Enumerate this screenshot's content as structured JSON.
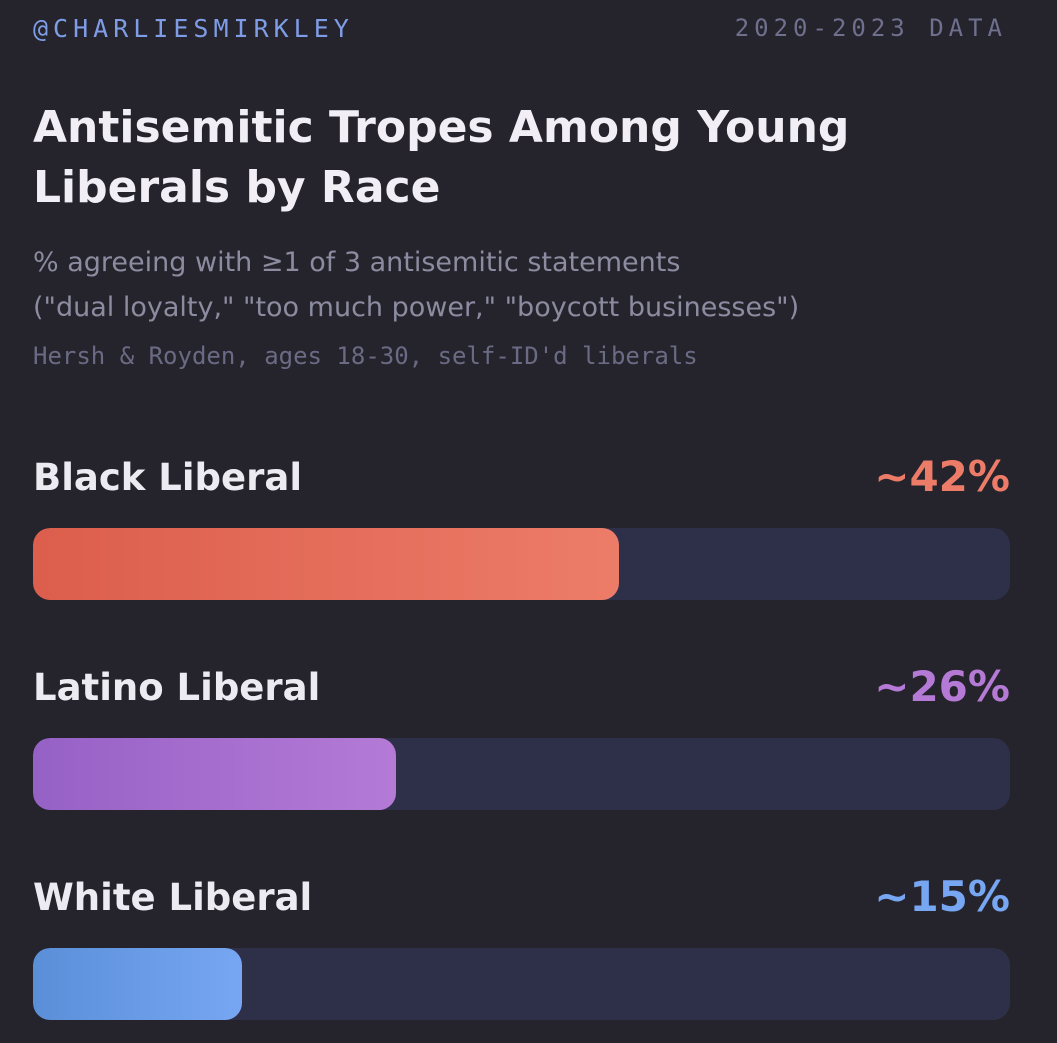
{
  "header": {
    "handle": "@CHARLIESMIRKLEY",
    "years": "2020-2023 DATA"
  },
  "chart_data": {
    "type": "bar",
    "orientation": "horizontal",
    "title": "Antisemitic Tropes Among Young Liberals by Race",
    "subtitle_lines": [
      "% agreeing with ≥1 of 3 antisemitic statements",
      "(\"dual loyalty,\" \"too much power,\" \"boycott businesses\")"
    ],
    "source": "Hersh & Royden, ages 18-30, self-ID'd liberals",
    "categories": [
      "Black Liberal",
      "Latino Liberal",
      "White Liberal"
    ],
    "values": [
      42,
      26,
      15
    ],
    "value_labels": [
      "~42%",
      "~26%",
      "~15%"
    ],
    "colors": [
      [
        "#dc5e4c",
        "#ec7c68"
      ],
      [
        "#9661c6",
        "#b47ad6"
      ],
      [
        "#5a8fd8",
        "#77a6f2"
      ]
    ],
    "track_color": "#2e3049",
    "xlim": [
      0,
      70
    ],
    "grid": false
  }
}
